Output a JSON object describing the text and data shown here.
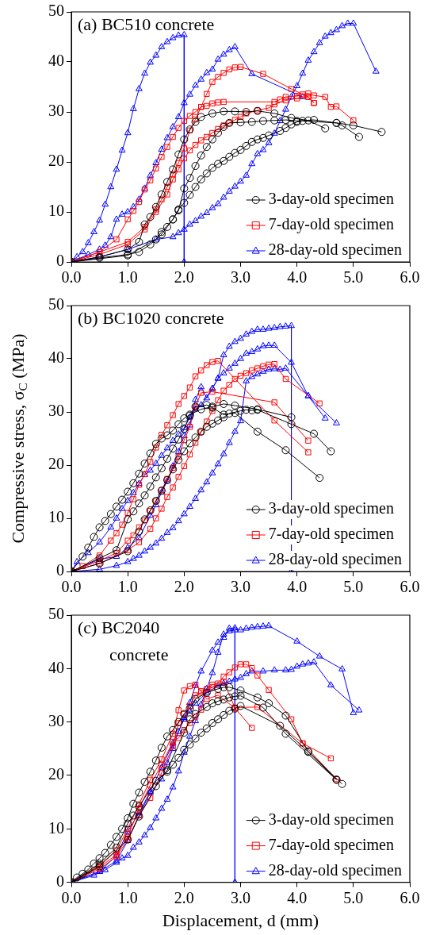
{
  "chart_data": [
    {
      "type": "line",
      "title": "(a) BC510 concrete",
      "legend": "bottom right",
      "grid": false,
      "xlim": [
        0,
        6
      ],
      "xticks": [
        {
          "value": 0,
          "label": "0.0"
        },
        {
          "value": 1,
          "label": "1.0"
        },
        {
          "value": 2,
          "label": "2.0"
        },
        {
          "value": 3,
          "label": "3.0"
        },
        {
          "value": 4,
          "label": "4.0"
        },
        {
          "value": 5,
          "label": "5.0"
        },
        {
          "value": 6,
          "label": "6.0"
        }
      ],
      "ylim": [
        0,
        50
      ],
      "yticks": [
        0,
        10,
        20,
        30,
        40,
        50
      ],
      "series": [
        {
          "name": "3-day-old specimen",
          "color": "#000000",
          "marker": "circle",
          "x": [
            0,
            0.5,
            1.0,
            1.2,
            1.3,
            1.4,
            1.5,
            1.6,
            1.7,
            1.8,
            1.9,
            2.0,
            2.1,
            2.2,
            2.3,
            2.5,
            2.7,
            2.9,
            3.1,
            3.3,
            3.6,
            3.9,
            4.2,
            4.5
          ],
          "values": [
            0,
            1,
            2.5,
            4,
            7.5,
            9,
            11,
            13.5,
            16,
            18.5,
            21.5,
            24.5,
            26.5,
            28,
            29,
            29.7,
            30.1,
            30.1,
            30,
            30.2,
            29.7,
            28.8,
            28.3,
            26.7
          ]
        },
        {
          "color": "#000000",
          "marker": "circle",
          "x": [
            0,
            0.5,
            1.0,
            1.2,
            1.4,
            1.6,
            1.7,
            1.8,
            1.9,
            2.0,
            2.1,
            2.2,
            2.3,
            2.4,
            2.5,
            2.6,
            2.7,
            2.8,
            3.0,
            3.2,
            3.4,
            3.6,
            3.8,
            4.0,
            4.3,
            4.7,
            5.0,
            5.5
          ],
          "values": [
            0,
            0.8,
            1.5,
            2,
            3.5,
            5.5,
            7,
            8.5,
            10.3,
            14.7,
            16.8,
            19.2,
            21.3,
            23,
            24.5,
            25.8,
            27,
            27.8,
            27.9,
            28,
            28.2,
            28.3,
            28.4,
            28.2,
            28.4,
            27.8,
            27.3,
            26
          ]
        },
        {
          "color": "#000000",
          "marker": "circle",
          "x": [
            0,
            1.0,
            1.5,
            1.6,
            1.8,
            1.9,
            2.0,
            2.1,
            2.2,
            2.3,
            2.4,
            2.5,
            2.6,
            2.7,
            2.8,
            2.9,
            3.0,
            3.1,
            3.2,
            3.3,
            3.4,
            3.5,
            3.7,
            3.8,
            3.9,
            4.0,
            4.1,
            4.7,
            4.8,
            5.1
          ],
          "values": [
            0,
            1.3,
            4.5,
            6,
            8.5,
            10.5,
            11.8,
            13.4,
            15,
            16.5,
            17.7,
            18.8,
            19.6,
            20.2,
            21,
            21.8,
            22.4,
            23.2,
            24,
            24.5,
            24.8,
            25.3,
            26.2,
            26.8,
            27.5,
            28,
            28.2,
            27.8,
            27.3,
            25
          ]
        },
        {
          "name": "7-day-old specimen",
          "color": "#ff0000",
          "marker": "square",
          "x": [
            0,
            0.5,
            0.8,
            1.0,
            1.1,
            1.2,
            1.3,
            1.4,
            1.5,
            1.6,
            1.7,
            1.8,
            1.9,
            2.0,
            2.1,
            2.2,
            2.3,
            2.4,
            2.5,
            2.6,
            2.7,
            2.8,
            2.9,
            3.0,
            3.4,
            3.9,
            4.2,
            4.3
          ],
          "values": [
            0,
            2,
            4.5,
            8.5,
            10.2,
            12,
            14.5,
            16.3,
            18.7,
            21,
            23,
            25,
            26.8,
            28.2,
            29.2,
            30,
            31,
            33.6,
            36,
            37,
            37.8,
            38.5,
            38.9,
            39,
            37.6,
            34.6,
            33,
            31.8
          ]
        },
        {
          "color": "#ff0000",
          "marker": "square",
          "x": [
            0,
            1.0,
            1.3,
            1.5,
            1.6,
            1.7,
            1.8,
            1.9,
            2.0,
            2.1,
            2.2,
            2.3,
            2.4,
            2.5,
            2.6,
            2.7,
            3.6,
            3.7,
            3.8,
            4.0,
            4.1,
            4.2,
            4.3,
            4.5,
            4.6,
            4.7,
            5.0
          ],
          "values": [
            0,
            4,
            7,
            10.5,
            12.5,
            15,
            17.5,
            19.8,
            22.7,
            26.3,
            28.5,
            31,
            31.2,
            31.7,
            31.9,
            32,
            32,
            32.5,
            33,
            33.2,
            33.5,
            33.7,
            33.3,
            33,
            31,
            31.1,
            28.3
          ]
        },
        {
          "color": "#ff0000",
          "marker": "square",
          "x": [
            0,
            0.5,
            1.0,
            1.3,
            1.5,
            1.7,
            1.8,
            1.9,
            2.0,
            2.1,
            2.2,
            2.3,
            2.4,
            2.5,
            2.6,
            2.7,
            2.8,
            2.9,
            3.0,
            3.1,
            3.3,
            3.5,
            3.6,
            3.8,
            4.0,
            4.2,
            4.3
          ],
          "values": [
            0,
            1.5,
            3.5,
            6.5,
            10,
            13.5,
            16.5,
            18.5,
            20.7,
            22.3,
            23.4,
            24.3,
            25,
            25.8,
            26.6,
            27.3,
            27.8,
            28.4,
            29,
            29.7,
            30.3,
            30.8,
            31.5,
            32.3,
            32.7,
            33,
            31.8
          ]
        },
        {
          "name": "28-day-old specimen",
          "color": "#0000ff",
          "marker": "triangle",
          "x": [
            0,
            0.1,
            0.2,
            0.3,
            0.4,
            0.5,
            0.6,
            0.7,
            0.8,
            0.9,
            1.0,
            1.1,
            1.2,
            1.3,
            1.4,
            1.5,
            1.6,
            1.7,
            1.8,
            1.9,
            2.0,
            2.0
          ],
          "values": [
            0,
            1,
            2,
            3.8,
            6,
            8.3,
            11.5,
            15,
            18.5,
            22.3,
            25.8,
            30.6,
            34.6,
            37.7,
            39.9,
            41.3,
            43,
            44,
            44.8,
            45.3,
            45.4,
            0
          ]
        },
        {
          "color": "#0000ff",
          "marker": "triangle",
          "x": [
            0,
            0.3,
            0.5,
            0.6,
            0.7,
            0.8,
            0.9,
            1.0,
            1.1,
            1.2,
            1.3,
            1.4,
            1.5,
            1.6,
            1.7,
            1.8,
            1.9,
            2.0,
            2.1,
            2.2,
            2.3,
            2.4,
            2.5,
            2.6,
            2.7,
            2.8,
            2.9,
            3.2,
            4.1
          ],
          "values": [
            0,
            1.5,
            2.5,
            3.3,
            5,
            8.5,
            9.5,
            10,
            11,
            12.5,
            14.7,
            17.3,
            19.8,
            22.5,
            24.8,
            27,
            29,
            31.8,
            33.5,
            35.3,
            36.5,
            37.8,
            38.5,
            40.5,
            41.5,
            42.4,
            43,
            37.6,
            33
          ]
        },
        {
          "color": "#0000ff",
          "marker": "triangle",
          "x": [
            0,
            0.5,
            1.0,
            1.5,
            1.8,
            1.9,
            2.0,
            2.1,
            2.2,
            2.3,
            2.4,
            2.5,
            2.6,
            2.7,
            2.8,
            2.9,
            3.0,
            3.1,
            3.2,
            3.3,
            3.4,
            3.5,
            3.6,
            3.7,
            3.8,
            3.9,
            4.0,
            4.1,
            4.2,
            4.3,
            4.4,
            4.5,
            4.6,
            4.7,
            4.8,
            4.9,
            5.0,
            5.4
          ],
          "values": [
            0,
            1,
            2.5,
            4.5,
            5,
            5.8,
            6.5,
            7.5,
            8.2,
            9.1,
            9.8,
            10.8,
            11.6,
            12.9,
            14.1,
            15.1,
            16.1,
            17.3,
            19.6,
            21.6,
            22.4,
            23.8,
            25.7,
            28.2,
            30.5,
            33,
            35.2,
            37.7,
            40.3,
            42,
            43.8,
            45.1,
            45.8,
            46.4,
            47.2,
            47.7,
            47.7,
            38.1
          ]
        }
      ]
    },
    {
      "type": "line",
      "title": "(b) BC1020 concrete",
      "ylabel": "Compressive stress, σ$_{C}$ (MPa)",
      "legend": "bottom right",
      "grid": false,
      "xlim": [
        0,
        6
      ],
      "xticks": [
        {
          "value": 0,
          "label": "0.0"
        },
        {
          "value": 1,
          "label": "1.0"
        },
        {
          "value": 2,
          "label": "2.0"
        },
        {
          "value": 3,
          "label": "3.0"
        },
        {
          "value": 4,
          "label": "4.0"
        },
        {
          "value": 5,
          "label": "5.0"
        },
        {
          "value": 6,
          "label": "6.0"
        }
      ],
      "ylim": [
        0,
        50
      ],
      "yticks": [
        0,
        10,
        20,
        30,
        40,
        50
      ],
      "series": [
        {
          "name": "3-day-old specimen",
          "color": "#000000",
          "marker": "circle",
          "x": [
            0,
            0.2,
            0.3,
            0.4,
            0.5,
            0.6,
            0.7,
            0.8,
            0.9,
            1.0,
            1.1,
            1.2,
            1.3,
            1.4,
            1.5,
            1.6,
            1.7,
            1.8,
            1.9,
            2.0,
            2.1,
            2.3,
            2.5,
            2.7,
            2.9,
            3.3,
            3.9
          ],
          "values": [
            0,
            2.8,
            4.5,
            6.5,
            8.3,
            9.5,
            10.8,
            12.2,
            13.5,
            15,
            16.6,
            18.4,
            20.3,
            22.2,
            24,
            25,
            25.6,
            26.5,
            27.7,
            28.8,
            29.5,
            30.5,
            31,
            31.5,
            31.2,
            30.5,
            29
          ]
        },
        {
          "color": "#000000",
          "marker": "circle",
          "x": [
            0,
            0.5,
            0.8,
            1.0,
            1.1,
            1.2,
            1.3,
            1.4,
            1.5,
            1.6,
            1.7,
            1.8,
            1.9,
            2.0,
            2.1,
            2.2,
            2.4,
            2.5,
            2.7,
            2.9,
            3.3,
            3.8,
            4.4
          ],
          "values": [
            0,
            2.5,
            4,
            9.8,
            11.3,
            12.8,
            14.3,
            16,
            17.7,
            19.4,
            21.2,
            23.1,
            24.8,
            26.8,
            29.3,
            31,
            31.3,
            30.8,
            29.5,
            29.8,
            26.3,
            22.8,
            17.6
          ]
        },
        {
          "color": "#000000",
          "marker": "circle",
          "x": [
            0,
            0.5,
            1.0,
            1.2,
            1.3,
            1.4,
            1.5,
            1.6,
            1.7,
            1.8,
            1.9,
            2.0,
            2.1,
            2.2,
            2.3,
            2.4,
            2.5,
            2.6,
            2.7,
            2.8,
            3.0,
            3.1,
            3.2,
            3.3,
            3.9,
            4.3,
            4.6
          ],
          "values": [
            0,
            1.5,
            3.8,
            7.5,
            9.8,
            11.5,
            13.3,
            15.2,
            17.2,
            19.2,
            21,
            22.6,
            24.1,
            25.2,
            26.3,
            27.2,
            27.8,
            28.4,
            29,
            29.7,
            30.2,
            30.4,
            30.3,
            30.4,
            27.7,
            25.9,
            22.6
          ]
        },
        {
          "name": "7-day-old specimen",
          "color": "#ff0000",
          "marker": "square",
          "x": [
            0,
            0.2,
            0.5,
            0.7,
            0.8,
            0.9,
            1.0,
            1.1,
            1.2,
            1.3,
            1.4,
            1.5,
            1.6,
            1.7,
            1.8,
            1.9,
            2.0,
            2.1,
            2.2,
            2.3,
            2.4,
            2.5,
            2.6,
            3.6,
            4.2
          ],
          "values": [
            0,
            1,
            3,
            5.8,
            7.2,
            8.8,
            11,
            13.6,
            16.3,
            18.3,
            20.6,
            23.3,
            25.7,
            27.5,
            29.4,
            31.5,
            33,
            34.6,
            36.7,
            37.8,
            38.8,
            39.4,
            39.6,
            28.4,
            22.4
          ]
        },
        {
          "color": "#ff0000",
          "marker": "square",
          "x": [
            0,
            0.5,
            0.8,
            1.0,
            1.1,
            1.2,
            1.3,
            1.4,
            1.5,
            1.6,
            1.7,
            1.8,
            1.9,
            2.0,
            2.1,
            2.2,
            2.3,
            2.5,
            3.6,
            4.2
          ],
          "values": [
            0,
            2,
            3.5,
            5.8,
            6.8,
            8.3,
            9.6,
            11.4,
            13.2,
            15.3,
            17.4,
            19.5,
            21.6,
            24.7,
            27.2,
            31,
            33.6,
            33.8,
            31.8,
            24.6
          ]
        },
        {
          "color": "#ff0000",
          "marker": "square",
          "x": [
            0,
            0.5,
            1.0,
            1.2,
            1.4,
            1.5,
            1.6,
            1.7,
            1.8,
            1.9,
            2.0,
            2.1,
            2.2,
            2.3,
            2.4,
            2.5,
            2.6,
            2.7,
            2.8,
            2.9,
            3.0,
            3.1,
            3.2,
            3.3,
            3.4,
            3.5,
            3.6,
            3.8,
            4.4
          ],
          "values": [
            0,
            1.5,
            4,
            5.5,
            8,
            10,
            11.8,
            14,
            15.8,
            17.8,
            19.8,
            22,
            24.2,
            26.2,
            28.2,
            30.2,
            32.2,
            34,
            35.1,
            36.2,
            36.8,
            37.3,
            37.8,
            38.2,
            38.6,
            38.9,
            39,
            36.2,
            31.6
          ]
        },
        {
          "name": "28-day-old specimen",
          "color": "#0000ff",
          "marker": "triangle",
          "x": [
            0,
            0.1,
            0.3,
            0.5,
            0.7,
            0.8,
            0.9,
            1.0,
            1.1,
            1.2,
            1.3,
            1.4,
            1.5,
            1.6,
            1.7,
            1.8,
            1.9,
            2.0,
            2.1,
            2.2,
            2.3,
            2.5,
            2.6,
            2.7,
            2.8,
            2.9,
            3.0,
            3.1,
            3.2,
            3.3,
            3.4,
            3.5,
            3.6,
            3.9,
            4.2,
            4.7
          ],
          "values": [
            0,
            1.8,
            3.5,
            5.5,
            8.3,
            10,
            11.8,
            13.3,
            14.8,
            16.5,
            18.2,
            19,
            20.3,
            21.8,
            23.2,
            24.6,
            25.8,
            27,
            29,
            30.5,
            31.3,
            34.4,
            36.3,
            37.3,
            38.2,
            39.1,
            40,
            41,
            41.3,
            41.8,
            42.4,
            42.5,
            42.5,
            39.3,
            33,
            27.9
          ]
        },
        {
          "color": "#0000ff",
          "marker": "triangle",
          "x": [
            0,
            0.5,
            0.8,
            1.0,
            1.2,
            1.4,
            1.5,
            1.6,
            1.7,
            1.8,
            1.9,
            2.0,
            2.1,
            2.2,
            2.3,
            2.4,
            2.5,
            2.6,
            2.7,
            2.8,
            2.9,
            3.0,
            3.1,
            3.2,
            3.3,
            3.4,
            3.5,
            3.6,
            3.7,
            3.8,
            3.9,
            3.9
          ],
          "values": [
            0,
            2.3,
            2.8,
            4.5,
            6.3,
            10.5,
            12.5,
            14.9,
            17,
            19.8,
            22.5,
            25.5,
            27.5,
            32.3,
            34.7,
            32.6,
            34.4,
            36.3,
            40.7,
            42.3,
            43.2,
            43.8,
            44.6,
            45.1,
            45.5,
            45.5,
            45.7,
            45.8,
            46,
            46.1,
            46.2,
            0
          ]
        },
        {
          "color": "#0000ff",
          "marker": "triangle",
          "x": [
            0,
            0.5,
            0.8,
            1.0,
            1.1,
            1.2,
            1.3,
            1.4,
            1.5,
            1.6,
            1.7,
            1.8,
            1.9,
            2.0,
            2.1,
            2.2,
            2.3,
            2.4,
            2.5,
            2.6,
            2.7,
            2.8,
            2.9,
            3.0,
            3.1,
            3.2,
            3.3,
            3.4,
            3.5,
            3.6,
            3.7,
            3.8,
            4.2,
            4.5
          ],
          "values": [
            0,
            0.4,
            1.1,
            1.8,
            2.4,
            3,
            3.8,
            4.5,
            5.3,
            6.2,
            7.3,
            8.2,
            9.5,
            10.8,
            12.2,
            13.7,
            15.3,
            16.8,
            18.5,
            20.2,
            22.1,
            24.2,
            26.3,
            28.3,
            35.8,
            36.6,
            37.1,
            37.6,
            38,
            38.1,
            38,
            38.2,
            33,
            28.8
          ]
        }
      ]
    },
    {
      "type": "line",
      "title": "(c) BC2040 concrete",
      "xlabel": "Displacement, d (mm)",
      "legend": "bottom right",
      "grid": false,
      "xlim": [
        0,
        6
      ],
      "xticks": [
        {
          "value": 0,
          "label": "0.0"
        },
        {
          "value": 1,
          "label": "1.0"
        },
        {
          "value": 2,
          "label": "2.0"
        },
        {
          "value": 3,
          "label": "3.0"
        },
        {
          "value": 4,
          "label": "4.0"
        },
        {
          "value": 5,
          "label": "5.0"
        },
        {
          "value": 6,
          "label": "6.0"
        }
      ],
      "ylim": [
        0,
        50
      ],
      "yticks": [
        0,
        10,
        20,
        30,
        40,
        50
      ],
      "series": [
        {
          "name": "3-day-old specimen",
          "color": "#000000",
          "marker": "circle",
          "x": [
            0,
            0.1,
            0.2,
            0.3,
            0.4,
            0.5,
            0.6,
            0.7,
            0.8,
            0.9,
            1.0,
            1.1,
            1.2,
            1.3,
            1.4,
            1.5,
            1.6,
            1.7,
            1.8,
            1.9,
            2.0,
            2.1,
            2.2,
            2.4,
            2.6,
            2.7,
            2.8,
            3.0,
            3.3,
            3.5,
            3.8,
            4.2,
            4.8
          ],
          "values": [
            0,
            0.9,
            1.6,
            2.4,
            3.5,
            4.5,
            5.5,
            7,
            8.5,
            10,
            12,
            14.7,
            16.8,
            18.8,
            20.7,
            22.8,
            25.2,
            27.3,
            28.5,
            30,
            31.5,
            32.5,
            34.3,
            35.5,
            36.2,
            36.5,
            36.5,
            35.9,
            34.6,
            33.5,
            31.2,
            24.5,
            18.4
          ]
        },
        {
          "color": "#000000",
          "marker": "circle",
          "x": [
            0,
            0.5,
            0.8,
            1.0,
            1.1,
            1.2,
            1.5,
            1.7,
            1.8,
            1.9,
            2.0,
            2.1,
            2.2,
            2.3,
            2.4,
            2.5,
            2.6,
            2.7,
            2.8,
            2.9,
            3.0,
            3.7,
            4.2,
            4.7
          ],
          "values": [
            0,
            3.5,
            6.5,
            11,
            12.5,
            14.2,
            19,
            20.7,
            22,
            23.3,
            24.8,
            25.8,
            26.9,
            28,
            28.8,
            29.8,
            30.5,
            31.3,
            32.1,
            32.5,
            33,
            29.3,
            24.4,
            19.2
          ]
        },
        {
          "color": "#000000",
          "marker": "circle",
          "x": [
            0,
            0.5,
            1.0,
            1.2,
            1.5,
            1.7,
            2.0,
            2.1,
            2.2,
            2.4,
            2.5,
            2.6,
            2.7,
            2.8,
            2.9,
            3.0,
            3.4,
            3.8,
            4.7
          ],
          "values": [
            0,
            3,
            8,
            12.3,
            18,
            21,
            28,
            30.5,
            31.5,
            32.8,
            33.5,
            33.9,
            34.2,
            34.6,
            34.8,
            34.9,
            32.7,
            27.8,
            19.2
          ]
        },
        {
          "name": "7-day-old specimen",
          "color": "#ff0000",
          "marker": "square",
          "x": [
            0,
            0.5,
            0.8,
            1.0,
            1.2,
            1.4,
            1.6,
            1.8,
            1.9,
            2.0,
            2.1,
            2.2,
            2.3,
            2.4,
            2.6,
            2.9,
            3.2
          ],
          "values": [
            0,
            3.2,
            6,
            10,
            14.6,
            19.2,
            23,
            27.8,
            32.2,
            35.9,
            36.7,
            37,
            35.8,
            34.3,
            35,
            32.6,
            28.9
          ]
        },
        {
          "color": "#ff0000",
          "marker": "square",
          "x": [
            0,
            0.5,
            0.8,
            1.0,
            1.2,
            1.4,
            1.6,
            1.8,
            1.9,
            2.0,
            2.1,
            2.2,
            2.3,
            2.4,
            2.5,
            2.6,
            2.7,
            2.8,
            2.9,
            3.0,
            3.1,
            3.2,
            3.3,
            3.5,
            3.9,
            4.1,
            4.6
          ],
          "values": [
            0,
            2.8,
            5.2,
            8.5,
            13.8,
            18.2,
            22,
            26.3,
            27,
            28.5,
            29.8,
            31,
            32.3,
            36.2,
            37,
            37.2,
            38.5,
            39.3,
            40.2,
            40.8,
            40.8,
            40.1,
            38.7,
            36,
            30.5,
            26,
            23.2
          ]
        },
        {
          "color": "#ff0000",
          "marker": "square",
          "x": [
            0,
            0.5,
            0.8,
            1.0,
            1.2,
            1.4,
            1.6,
            1.8,
            1.9,
            2.0,
            2.1,
            2.2,
            2.3,
            2.5,
            2.7,
            2.9,
            3.3,
            4.1,
            4.7
          ],
          "values": [
            0,
            2.5,
            4.8,
            8,
            12.5,
            15.8,
            20.5,
            25.5,
            29.8,
            31.5,
            33,
            35,
            35.5,
            36.5,
            37.5,
            32.7,
            32.8,
            26,
            19.3
          ]
        },
        {
          "name": "28-day-old specimen",
          "color": "#0000ff",
          "marker": "triangle",
          "x": [
            0,
            0.5,
            0.8,
            1.0,
            1.2,
            1.4,
            1.6,
            1.8,
            2.0,
            2.1,
            2.2,
            2.3,
            2.5,
            2.6,
            2.7,
            2.8,
            2.9,
            3.0,
            3.1,
            3.2,
            3.3,
            3.4,
            3.5,
            4.0,
            4.4,
            4.8,
            5.0
          ],
          "values": [
            0,
            2,
            5,
            9.5,
            13,
            17,
            21.5,
            26,
            30.5,
            33.6,
            36.8,
            39.5,
            43.4,
            44.9,
            45.8,
            47.5,
            47.6,
            47.2,
            47.5,
            47.7,
            47.8,
            47.9,
            48,
            45.1,
            42.3,
            39.9,
            31.7
          ]
        },
        {
          "color": "#0000ff",
          "marker": "triangle",
          "x": [
            0,
            0.5,
            0.8,
            1.0,
            1.2,
            1.4,
            1.6,
            1.7,
            1.8,
            1.9,
            2.0,
            2.1,
            2.2,
            2.4,
            2.6,
            2.7,
            2.8,
            2.9,
            3.0,
            3.1,
            3.2,
            3.4,
            3.6,
            3.8,
            3.9,
            4.0,
            4.1,
            4.2,
            4.3,
            4.6,
            5.1
          ],
          "values": [
            0,
            2,
            4,
            7.8,
            12.5,
            16.8,
            19.3,
            22.3,
            25,
            28.2,
            30.8,
            32,
            33.5,
            35.5,
            36.8,
            37.2,
            37.6,
            38,
            38.3,
            39,
            39.5,
            39.5,
            39.7,
            39.7,
            39.8,
            40.4,
            40.8,
            41,
            41.2,
            36.9,
            32.2
          ]
        },
        {
          "color": "#0000ff",
          "marker": "triangle",
          "x": [
            0,
            0.4,
            0.6,
            0.8,
            0.9,
            1.0,
            1.1,
            1.2,
            1.3,
            1.4,
            1.5,
            1.6,
            1.7,
            1.8,
            1.9,
            2.0,
            2.1,
            2.2,
            2.3,
            2.4,
            2.5,
            2.6,
            2.7,
            2.8,
            2.9,
            2.9
          ],
          "values": [
            0,
            1.3,
            2.3,
            3.7,
            4.5,
            5,
            6.5,
            7.5,
            8.8,
            10.2,
            12,
            13.8,
            15.5,
            17.8,
            20.8,
            24.3,
            27.3,
            30.2,
            33.3,
            36.2,
            39.2,
            43,
            46.4,
            47,
            47.2,
            0
          ]
        }
      ]
    }
  ]
}
